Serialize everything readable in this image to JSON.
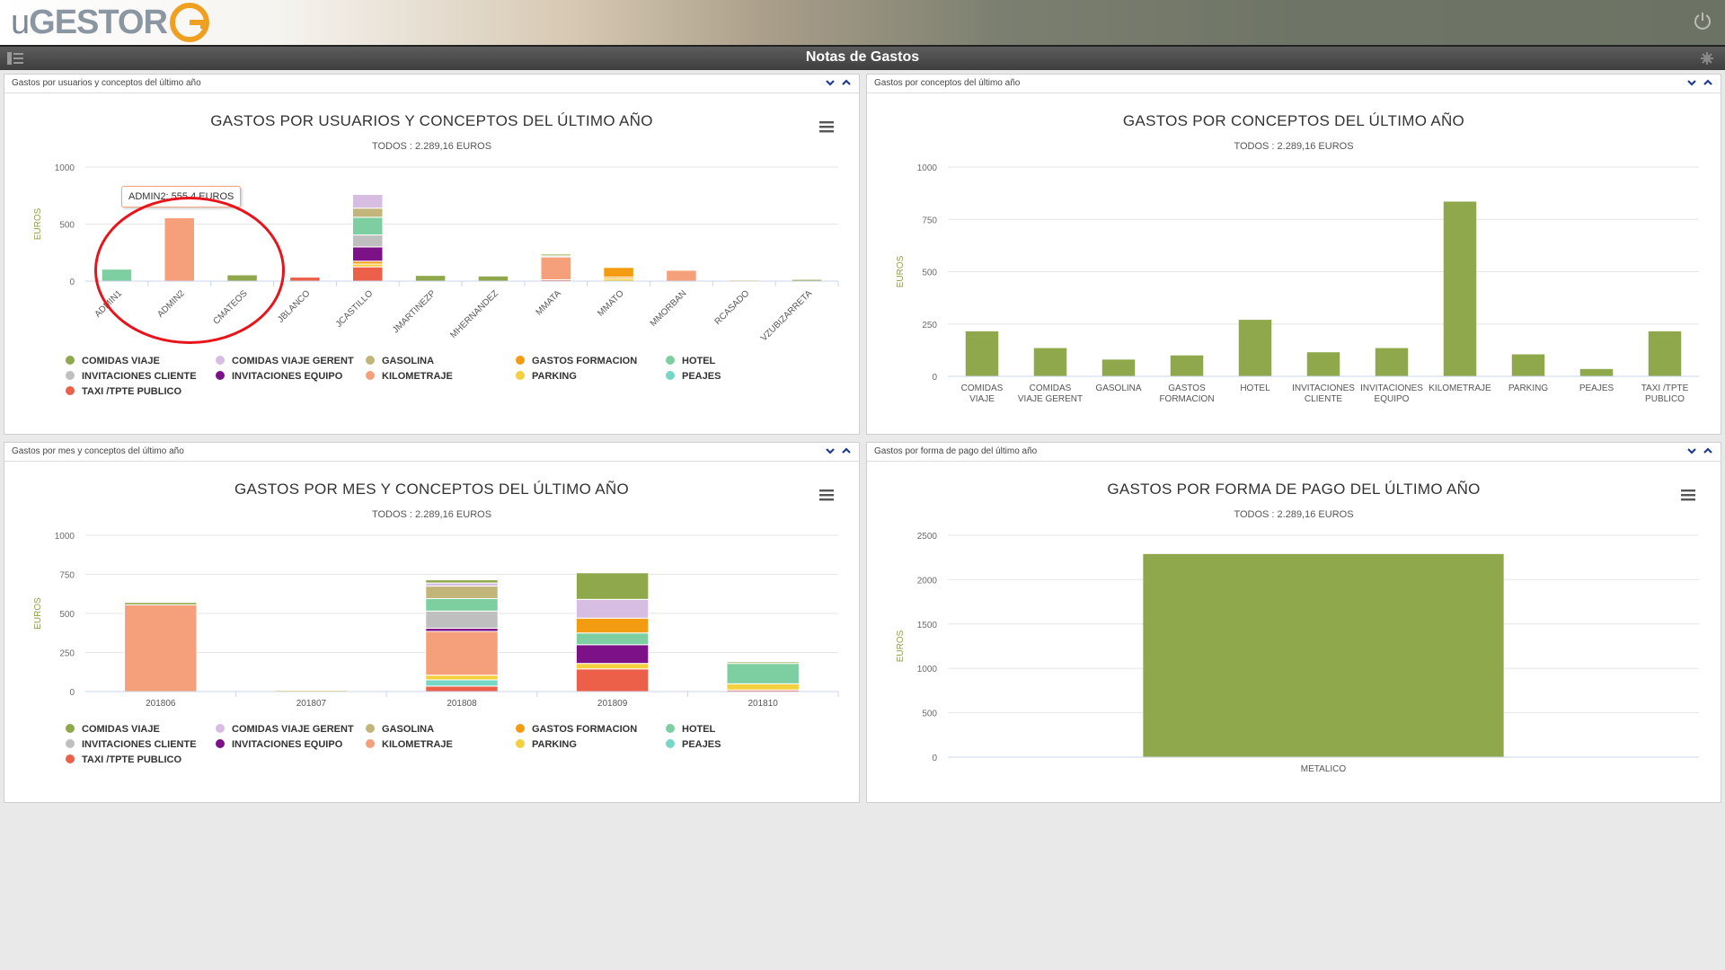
{
  "app": {
    "logo_text_prefix": "u",
    "logo_text_main": "GESTOR",
    "page_title": "Notas de Gastos"
  },
  "colors": {
    "COMIDAS VIAJE": "#8ea84b",
    "COMIDAS VIAJE GERENT": "#d7bde2",
    "GASOLINA": "#c2b57a",
    "GASTOS FORMACION": "#f39c12",
    "HOTEL": "#7dcea0",
    "INVITACIONES CLIENTE": "#bfbfbf",
    "INVITACIONES EQUIPO": "#7d1188",
    "KILOMETRAJE": "#f5a07a",
    "PARKING": "#f4d03f",
    "PEAJES": "#76d7c4",
    "TAXI /TPTE PUBLICO": "#ec6049",
    "single_series": "#8ea84b"
  },
  "panels": {
    "p1": {
      "caption": "Gastos por usuarios y conceptos del último año",
      "title": "GASTOS POR USUARIOS Y CONCEPTOS DEL ÚLTIMO AÑO",
      "subtitle": "TODOS : 2.289,16 EUROS",
      "tooltip": "ADMIN2: 555.4 EUROS"
    },
    "p2": {
      "caption": "Gastos por conceptos del último año",
      "title": "GASTOS POR CONCEPTOS DEL ÚLTIMO AÑO",
      "subtitle": "TODOS : 2.289,16 EUROS"
    },
    "p3": {
      "caption": "Gastos por mes y conceptos del último año",
      "title": "GASTOS POR MES Y CONCEPTOS DEL ÚLTIMO AÑO",
      "subtitle": "TODOS : 2.289,16 EUROS"
    },
    "p4": {
      "caption": "Gastos por forma de pago del último año",
      "title": "GASTOS POR FORMA DE PAGO DEL ÚLTIMO AÑO",
      "subtitle": "TODOS : 2.289,16 EUROS"
    }
  },
  "legend": [
    "COMIDAS VIAJE",
    "COMIDAS VIAJE GERENT",
    "GASOLINA",
    "GASTOS FORMACION",
    "HOTEL",
    "INVITACIONES CLIENTE",
    "INVITACIONES EQUIPO",
    "KILOMETRAJE",
    "PARKING",
    "PEAJES",
    "TAXI /TPTE PUBLICO"
  ],
  "chart_data": [
    {
      "type": "bar",
      "stacked": true,
      "title": "GASTOS POR USUARIOS Y CONCEPTOS DEL ÚLTIMO AÑO",
      "subtitle": "TODOS : 2.289,16 EUROS",
      "ylabel": "EUROS",
      "ylim": [
        0,
        1000
      ],
      "yticks": [
        0,
        500,
        1000
      ],
      "categories": [
        "ADMIN1",
        "ADMIN2",
        "CMATEOS",
        "JBLANCO",
        "JCASTILLO",
        "JMARTINEZP",
        "MHERNANDEZ",
        "MMATA",
        "MMATO",
        "MMORBAN",
        "RCASADO",
        "VZUBIZARRETA"
      ],
      "series": [
        {
          "name": "TAXI /TPTE PUBLICO",
          "values": [
            0,
            0,
            0,
            35,
            125,
            0,
            0,
            12,
            0,
            0,
            0,
            0
          ]
        },
        {
          "name": "PARKING",
          "values": [
            0,
            0,
            0,
            0,
            25,
            0,
            0,
            0,
            20,
            0,
            10,
            0
          ]
        },
        {
          "name": "GASTOS FORMACION",
          "values": [
            0,
            0,
            0,
            0,
            25,
            0,
            0,
            0,
            15,
            0,
            0,
            0
          ]
        },
        {
          "name": "INVITACIONES EQUIPO",
          "values": [
            0,
            0,
            0,
            0,
            125,
            0,
            0,
            0,
            0,
            0,
            0,
            0
          ]
        },
        {
          "name": "INVITACIONES CLIENTE",
          "values": [
            0,
            0,
            0,
            0,
            105,
            0,
            0,
            0,
            0,
            0,
            0,
            0
          ]
        },
        {
          "name": "HOTEL",
          "values": [
            105,
            0,
            0,
            0,
            155,
            0,
            0,
            0,
            0,
            0,
            0,
            0
          ]
        },
        {
          "name": "GASOLINA",
          "values": [
            0,
            0,
            0,
            0,
            80,
            0,
            0,
            0,
            0,
            0,
            0,
            0
          ]
        },
        {
          "name": "COMIDAS VIAJE GERENT",
          "values": [
            0,
            0,
            0,
            0,
            120,
            0,
            0,
            0,
            0,
            0,
            0,
            0
          ]
        },
        {
          "name": "KILOMETRAJE",
          "values": [
            0,
            555.4,
            0,
            0,
            0,
            0,
            0,
            200,
            0,
            95,
            0,
            0
          ]
        },
        {
          "name": "GASTOS FORMACION",
          "values": [
            0,
            0,
            0,
            0,
            0,
            0,
            0,
            0,
            85,
            0,
            0,
            0
          ]
        },
        {
          "name": "PEAJES",
          "values": [
            0,
            0,
            0,
            0,
            0,
            0,
            0,
            10,
            0,
            0,
            0,
            0
          ]
        },
        {
          "name": "COMIDAS VIAJE",
          "values": [
            0,
            0,
            55,
            0,
            0,
            50,
            45,
            15,
            0,
            0,
            0,
            15
          ]
        }
      ]
    },
    {
      "type": "bar",
      "title": "GASTOS POR CONCEPTOS DEL ÚLTIMO AÑO",
      "subtitle": "TODOS : 2.289,16 EUROS",
      "ylabel": "EUROS",
      "ylim": [
        0,
        1000
      ],
      "yticks": [
        0,
        250,
        500,
        750,
        1000
      ],
      "categories": [
        [
          "COMIDAS",
          "VIAJE"
        ],
        [
          "COMIDAS",
          "VIAJE GERENT"
        ],
        [
          "GASOLINA"
        ],
        [
          "GASTOS",
          "FORMACION"
        ],
        [
          "HOTEL"
        ],
        [
          "INVITACIONES",
          "CLIENTE"
        ],
        [
          "INVITACIONES",
          "EQUIPO"
        ],
        [
          "KILOMETRAJE"
        ],
        [
          "PARKING"
        ],
        [
          "PEAJES"
        ],
        [
          "TAXI /TPTE",
          "PUBLICO"
        ]
      ],
      "values": [
        215,
        135,
        80,
        100,
        270,
        115,
        135,
        835,
        105,
        35,
        215
      ]
    },
    {
      "type": "bar",
      "stacked": true,
      "title": "GASTOS POR MES Y CONCEPTOS DEL ÚLTIMO AÑO",
      "subtitle": "TODOS : 2.289,16 EUROS",
      "ylabel": "EUROS",
      "ylim": [
        0,
        1000
      ],
      "yticks": [
        0,
        250,
        500,
        750,
        1000
      ],
      "categories": [
        "201806",
        "201807",
        "201808",
        "201809",
        "201810"
      ],
      "series": [
        {
          "name": "TAXI /TPTE PUBLICO",
          "values": [
            0,
            0,
            35,
            145,
            10
          ]
        },
        {
          "name": "PEAJES",
          "values": [
            0,
            0,
            40,
            0,
            0
          ]
        },
        {
          "name": "PARKING",
          "values": [
            0,
            8,
            30,
            35,
            40
          ]
        },
        {
          "name": "KILOMETRAJE",
          "values": [
            555,
            0,
            280,
            0,
            0
          ]
        },
        {
          "name": "INVITACIONES EQUIPO",
          "values": [
            0,
            0,
            20,
            120,
            0
          ]
        },
        {
          "name": "INVITACIONES CLIENTE",
          "values": [
            0,
            0,
            110,
            0,
            0
          ]
        },
        {
          "name": "HOTEL",
          "values": [
            0,
            0,
            80,
            75,
            130
          ]
        },
        {
          "name": "GASTOS FORMACION",
          "values": [
            0,
            0,
            0,
            95,
            0
          ]
        },
        {
          "name": "GASOLINA",
          "values": [
            0,
            0,
            80,
            0,
            0
          ]
        },
        {
          "name": "COMIDAS VIAJE GERENT",
          "values": [
            0,
            0,
            20,
            120,
            0
          ]
        },
        {
          "name": "COMIDAS VIAJE",
          "values": [
            15,
            0,
            20,
            170,
            10
          ]
        }
      ]
    },
    {
      "type": "bar",
      "title": "GASTOS POR FORMA DE PAGO DEL ÚLTIMO AÑO",
      "subtitle": "TODOS : 2.289,16 EUROS",
      "ylabel": "EUROS",
      "ylim": [
        0,
        2500
      ],
      "yticks": [
        0,
        500,
        1000,
        1500,
        2000,
        2500
      ],
      "categories": [
        "METALICO"
      ],
      "values": [
        2289.16
      ]
    }
  ]
}
